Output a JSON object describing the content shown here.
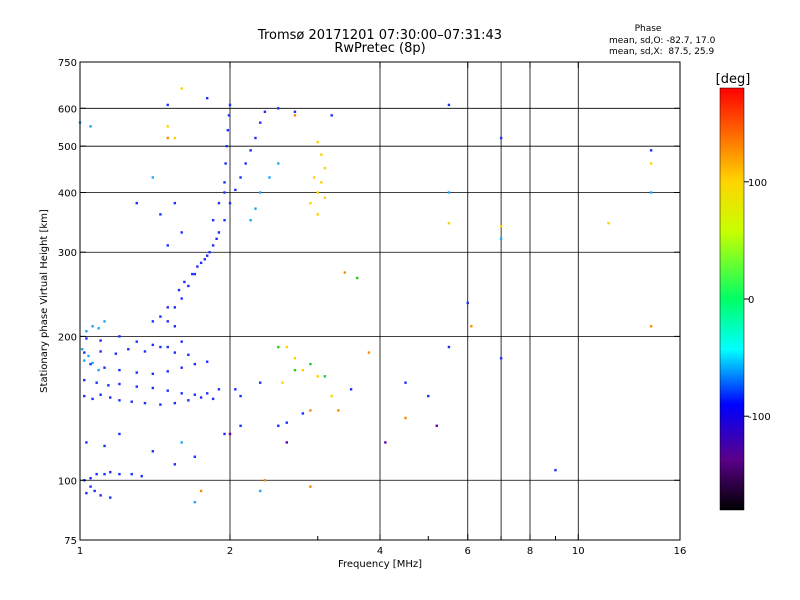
{
  "chart_data": {
    "type": "scatter",
    "title": "Tromsø 20171201 07:30:00–07:31:43",
    "subtitle": "RwPretec (8p)",
    "phase_stats": {
      "heading": "Phase",
      "line1": "mean, sd,O: -82.7, 17.0",
      "line2": "mean, sd,X:  87.5, 25.9"
    },
    "xlabel": "Frequency [MHz]",
    "ylabel": "Stationary phase Virtual Height [km]",
    "x_scale": "log",
    "y_scale": "log",
    "xlim": [
      1,
      16
    ],
    "ylim": [
      75,
      750
    ],
    "x_ticks": [
      1,
      2,
      4,
      6,
      8,
      10,
      16
    ],
    "x_tick_labels": [
      "1",
      "2",
      "4",
      "6",
      "8",
      "10",
      "16"
    ],
    "x_minor_ticks": [
      3,
      5,
      7,
      9
    ],
    "y_ticks": [
      75,
      100,
      200,
      300,
      400,
      500,
      600,
      750
    ],
    "y_tick_labels": [
      "75",
      "100",
      "200",
      "300",
      "400",
      "500",
      "600",
      "750"
    ],
    "x_grid": [
      2,
      4,
      6,
      7,
      8,
      10
    ],
    "y_grid": [
      100,
      200,
      300,
      400,
      500,
      600
    ],
    "colorbar": {
      "label": "[deg]",
      "range": [
        -180,
        180
      ],
      "ticks": [
        100,
        0,
        -100
      ],
      "tick_labels": [
        "100",
        "0",
        "-100"
      ]
    },
    "series": [
      {
        "points": [
          [
            1.02,
            100
          ],
          [
            1.05,
            101
          ],
          [
            1.08,
            103
          ],
          [
            1.12,
            103
          ],
          [
            1.15,
            104
          ],
          [
            1.2,
            103
          ],
          [
            1.27,
            103
          ],
          [
            1.33,
            102
          ],
          [
            1.03,
            94
          ],
          [
            1.07,
            95
          ],
          [
            1.1,
            93
          ],
          [
            1.05,
            97
          ],
          [
            1.15,
            92
          ],
          [
            1.02,
            150
          ],
          [
            1.06,
            148
          ],
          [
            1.1,
            151
          ],
          [
            1.15,
            149
          ],
          [
            1.2,
            147
          ],
          [
            1.27,
            146
          ],
          [
            1.35,
            145
          ],
          [
            1.45,
            144
          ],
          [
            1.55,
            145
          ],
          [
            1.65,
            147
          ],
          [
            1.75,
            149
          ],
          [
            1.85,
            148
          ],
          [
            1.02,
            162
          ],
          [
            1.08,
            160
          ],
          [
            1.14,
            158
          ],
          [
            1.2,
            159
          ],
          [
            1.3,
            157
          ],
          [
            1.4,
            156
          ],
          [
            1.5,
            154
          ],
          [
            1.6,
            152
          ],
          [
            1.7,
            151
          ],
          [
            1.8,
            152
          ],
          [
            1.9,
            155
          ],
          [
            1.05,
            175
          ],
          [
            1.12,
            172
          ],
          [
            1.2,
            170
          ],
          [
            1.3,
            168
          ],
          [
            1.4,
            167
          ],
          [
            1.5,
            169
          ],
          [
            1.6,
            172
          ],
          [
            1.7,
            175
          ],
          [
            1.8,
            177
          ],
          [
            1.02,
            185
          ],
          [
            1.1,
            186
          ],
          [
            1.18,
            184
          ],
          [
            1.25,
            188
          ],
          [
            1.35,
            186
          ],
          [
            1.45,
            190
          ],
          [
            1.55,
            185
          ],
          [
            1.65,
            183
          ],
          [
            1.03,
            198
          ],
          [
            1.1,
            196
          ],
          [
            1.2,
            200
          ],
          [
            1.3,
            195
          ],
          [
            1.4,
            192
          ],
          [
            1.5,
            190
          ],
          [
            1.6,
            195
          ],
          [
            1.5,
            215
          ],
          [
            1.55,
            230
          ],
          [
            1.6,
            240
          ],
          [
            1.65,
            255
          ],
          [
            1.7,
            270
          ],
          [
            1.75,
            285
          ],
          [
            1.8,
            295
          ],
          [
            1.85,
            310
          ],
          [
            1.9,
            330
          ],
          [
            1.95,
            350
          ],
          [
            2.0,
            380
          ],
          [
            2.05,
            405
          ],
          [
            2.1,
            430
          ],
          [
            2.15,
            460
          ],
          [
            2.2,
            490
          ],
          [
            2.25,
            520
          ],
          [
            2.3,
            560
          ],
          [
            2.35,
            590
          ],
          [
            1.95,
            420
          ],
          [
            1.96,
            460
          ],
          [
            1.97,
            500
          ],
          [
            1.98,
            540
          ],
          [
            1.99,
            580
          ],
          [
            2.0,
            610
          ],
          [
            1.85,
            350
          ],
          [
            1.9,
            380
          ],
          [
            1.95,
            400
          ],
          [
            1.88,
            320
          ],
          [
            1.82,
            300
          ],
          [
            1.78,
            290
          ],
          [
            1.72,
            280
          ],
          [
            1.68,
            270
          ],
          [
            1.62,
            260
          ],
          [
            1.58,
            250
          ],
          [
            1.45,
            360
          ],
          [
            1.5,
            310
          ],
          [
            1.55,
            380
          ],
          [
            1.6,
            330
          ],
          [
            1.4,
            215
          ],
          [
            1.45,
            220
          ],
          [
            1.5,
            230
          ],
          [
            1.55,
            210
          ],
          [
            2.05,
            155
          ],
          [
            2.1,
            150
          ],
          [
            2.3,
            160
          ],
          [
            2.5,
            130
          ],
          [
            2.6,
            132
          ],
          [
            2.8,
            138
          ],
          [
            3.5,
            155
          ],
          [
            4.5,
            160
          ],
          [
            5.0,
            150
          ],
          [
            5.5,
            190
          ],
          [
            6.0,
            235
          ],
          [
            7.0,
            180
          ],
          [
            9.0,
            105
          ],
          [
            1.3,
            380
          ],
          [
            1.5,
            610
          ],
          [
            1.8,
            630
          ],
          [
            2.5,
            600
          ],
          [
            2.7,
            590
          ],
          [
            3.2,
            580
          ],
          [
            5.5,
            610
          ],
          [
            7.0,
            520
          ],
          [
            14.0,
            490
          ],
          [
            1.03,
            120
          ],
          [
            1.12,
            118
          ],
          [
            1.2,
            125
          ],
          [
            1.4,
            115
          ],
          [
            1.55,
            108
          ],
          [
            1.7,
            112
          ],
          [
            1.95,
            125
          ],
          [
            2.1,
            130
          ]
        ]
      },
      {
        "points": [
          [
            1.01,
            188
          ],
          [
            1.04,
            182
          ],
          [
            1.06,
            176
          ],
          [
            1.09,
            170
          ],
          [
            1.02,
            178
          ],
          [
            1.03,
            205
          ],
          [
            1.06,
            210
          ],
          [
            1.09,
            208
          ],
          [
            1.12,
            215
          ],
          [
            2.2,
            350
          ],
          [
            2.25,
            370
          ],
          [
            2.3,
            400
          ],
          [
            2.4,
            430
          ],
          [
            2.5,
            460
          ],
          [
            1.4,
            430
          ],
          [
            1.0,
            560
          ],
          [
            1.05,
            550
          ],
          [
            5.5,
            400
          ],
          [
            7.0,
            320
          ],
          [
            14.0,
            400
          ],
          [
            1.6,
            120
          ],
          [
            1.7,
            90
          ],
          [
            2.3,
            95
          ]
        ]
      },
      {
        "points": [
          [
            3.0,
            510
          ],
          [
            3.05,
            480
          ],
          [
            3.1,
            450
          ],
          [
            2.95,
            430
          ],
          [
            3.0,
            400
          ],
          [
            3.05,
            420
          ],
          [
            3.1,
            390
          ],
          [
            2.9,
            380
          ],
          [
            3.0,
            360
          ],
          [
            2.6,
            190
          ],
          [
            2.7,
            180
          ],
          [
            2.8,
            170
          ],
          [
            2.55,
            160
          ],
          [
            3.0,
            165
          ],
          [
            3.2,
            150
          ],
          [
            1.5,
            550
          ],
          [
            1.55,
            520
          ],
          [
            1.6,
            660
          ],
          [
            7.0,
            340
          ],
          [
            11.5,
            345
          ],
          [
            14.0,
            460
          ],
          [
            5.5,
            345
          ]
        ]
      },
      {
        "points": [
          [
            2.9,
            175
          ],
          [
            3.1,
            165
          ],
          [
            3.6,
            265
          ],
          [
            2.7,
            170
          ],
          [
            2.5,
            190
          ]
        ]
      },
      {
        "points": [
          [
            2.7,
            580
          ],
          [
            3.4,
            272
          ],
          [
            3.8,
            185
          ],
          [
            2.9,
            140
          ],
          [
            3.3,
            140
          ],
          [
            4.5,
            135
          ],
          [
            6.1,
            210
          ],
          [
            2.35,
            100
          ],
          [
            2.9,
            97
          ],
          [
            14.0,
            210
          ],
          [
            1.75,
            95
          ],
          [
            1.5,
            520
          ]
        ]
      },
      {
        "points": [
          [
            2.0,
            125
          ],
          [
            2.6,
            120
          ],
          [
            4.1,
            120
          ],
          [
            5.2,
            130
          ]
        ]
      }
    ],
    "series_colors": [
      "#1e2dff",
      "#1aa8ff",
      "#ffd100",
      "#22cc22",
      "#ff8a00",
      "#6b00a8"
    ]
  }
}
